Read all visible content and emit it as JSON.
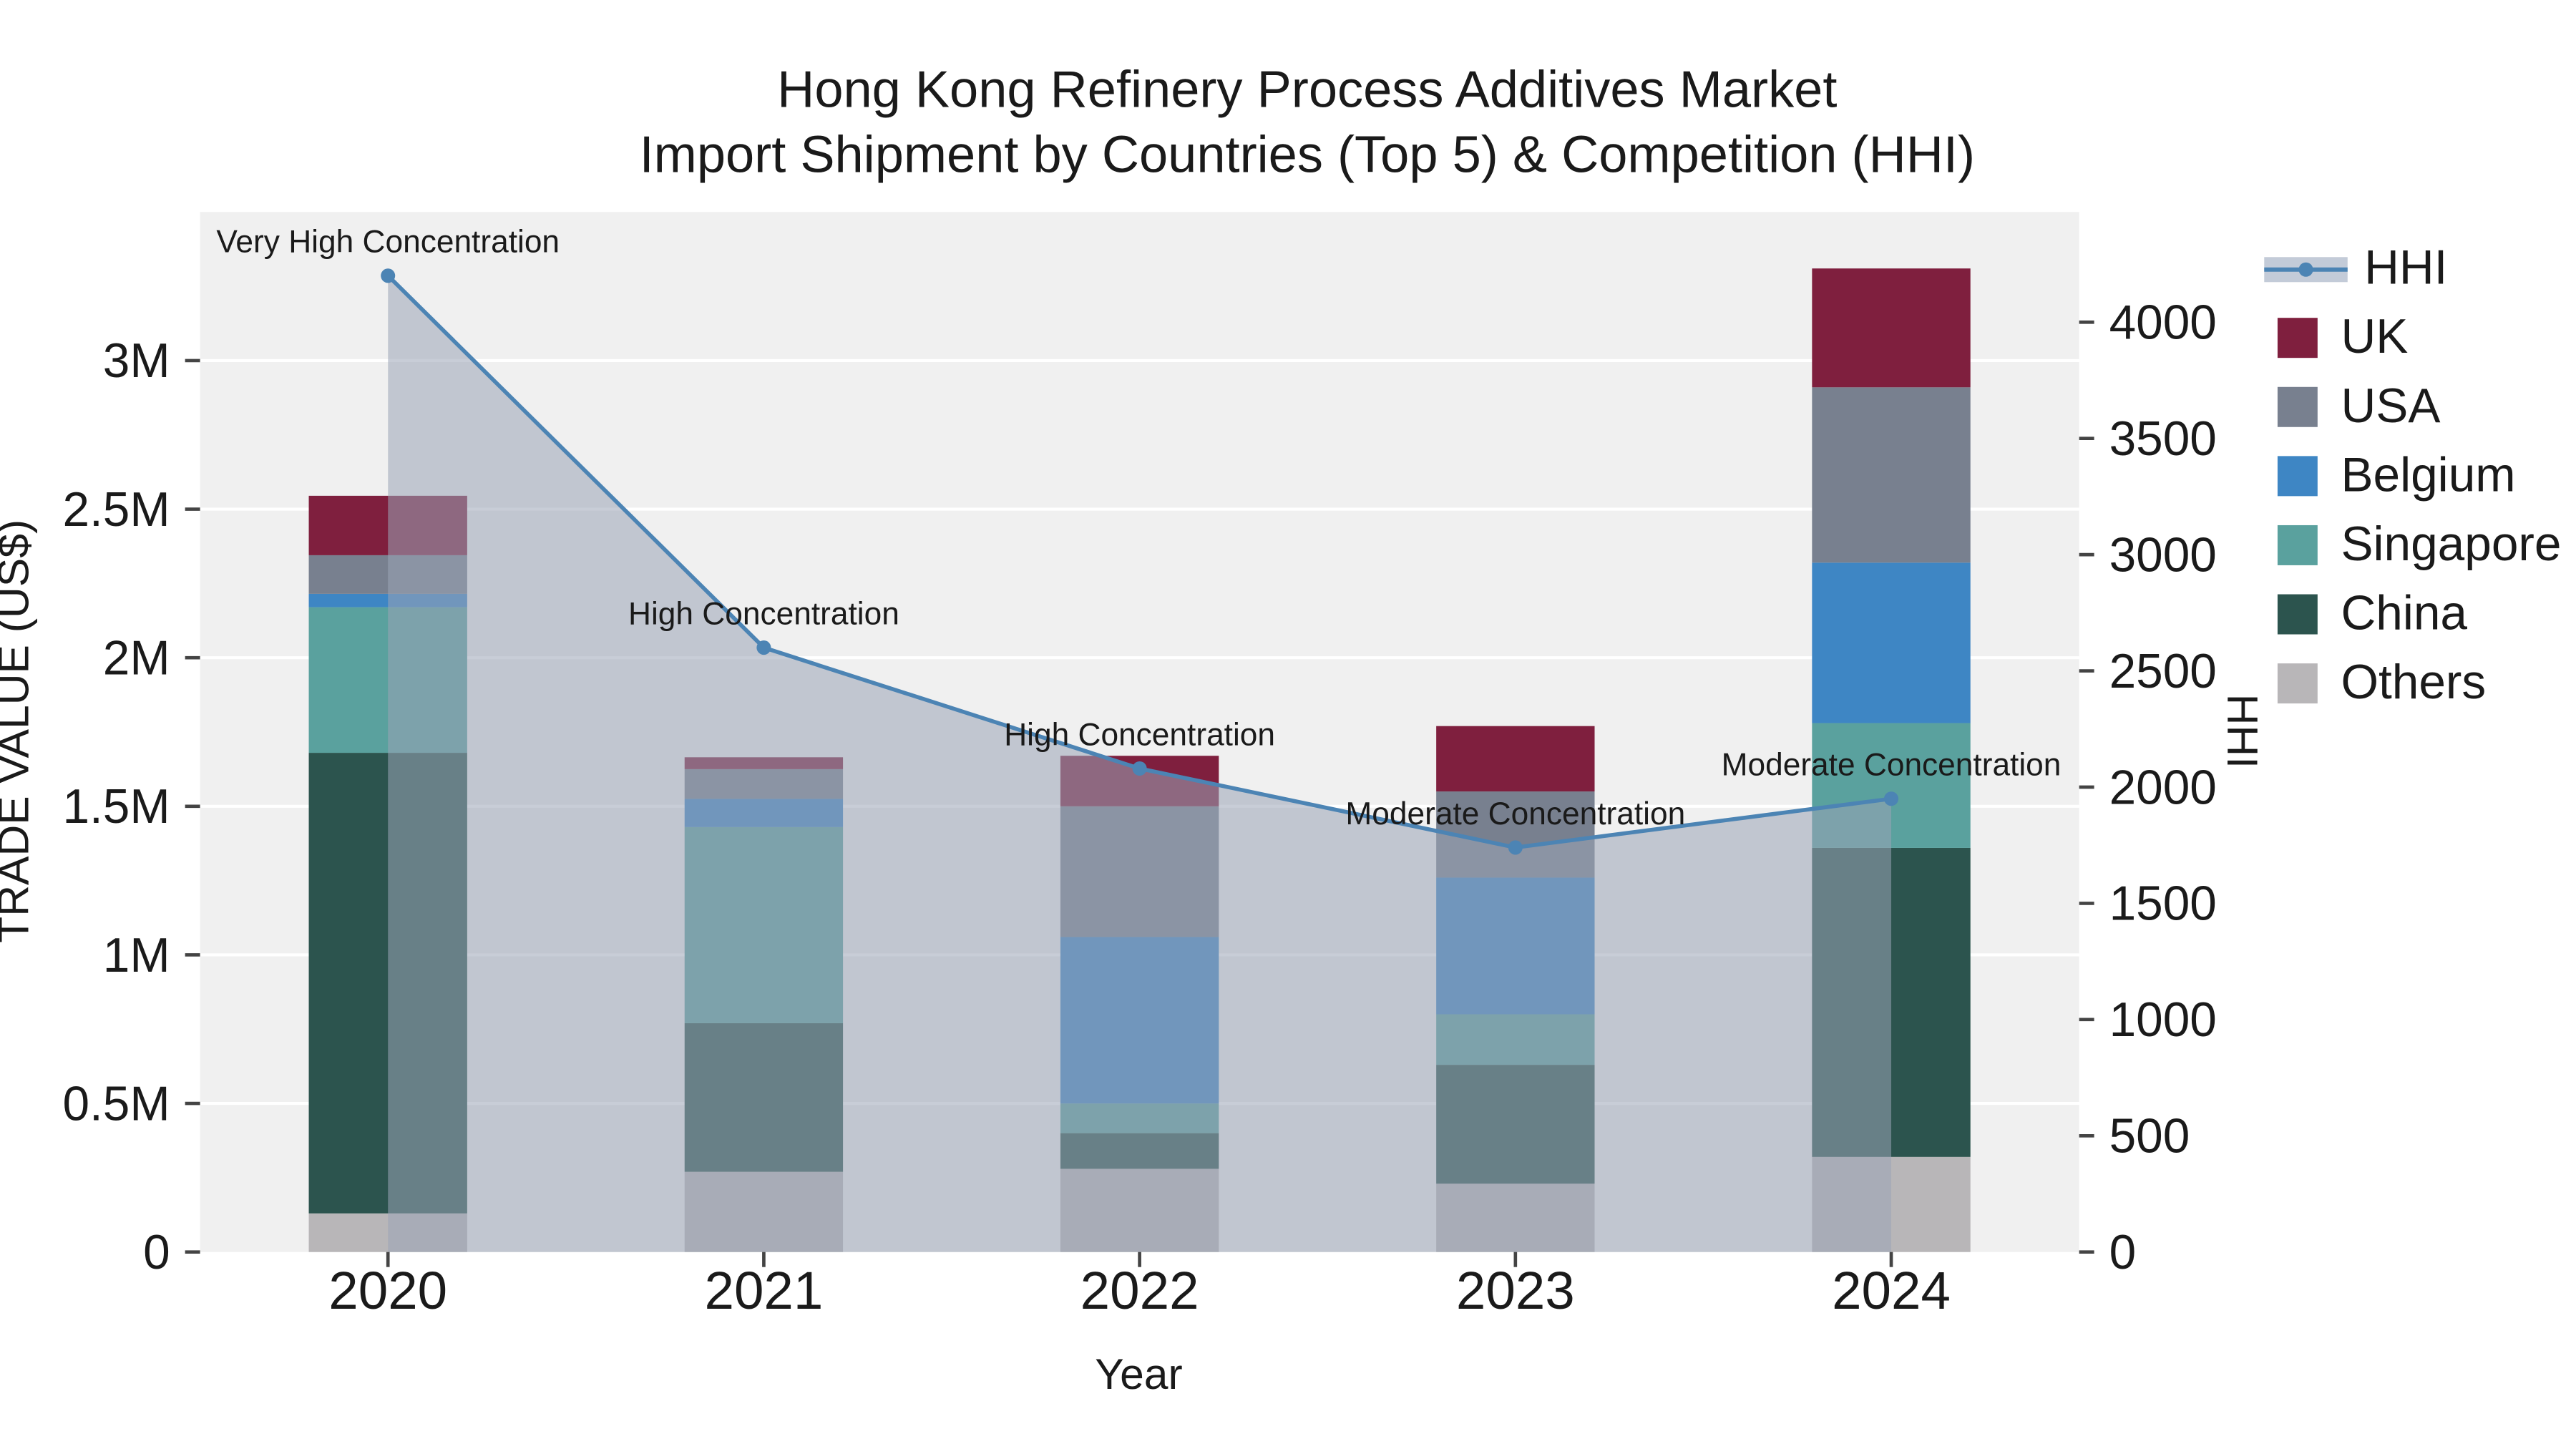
{
  "title": {
    "line1": "Hong Kong Refinery Process Additives Market",
    "line2": "Import Shipment by Countries (Top 5) & Competition (HHI)"
  },
  "axes": {
    "left": {
      "label": "TRADE VALUE (US$)",
      "range": [
        0,
        3500000
      ],
      "ticks": [
        {
          "v": 0,
          "label": "0"
        },
        {
          "v": 500000,
          "label": "0.5M"
        },
        {
          "v": 1000000,
          "label": "1M"
        },
        {
          "v": 1500000,
          "label": "1.5M"
        },
        {
          "v": 2000000,
          "label": "2M"
        },
        {
          "v": 2500000,
          "label": "2.5M"
        },
        {
          "v": 3000000,
          "label": "3M"
        }
      ]
    },
    "right": {
      "label": "HHI",
      "range": [
        0,
        4474
      ],
      "ticks": [
        {
          "v": 0,
          "label": "0"
        },
        {
          "v": 500,
          "label": "500"
        },
        {
          "v": 1000,
          "label": "1000"
        },
        {
          "v": 1500,
          "label": "1500"
        },
        {
          "v": 2000,
          "label": "2000"
        },
        {
          "v": 2500,
          "label": "2500"
        },
        {
          "v": 3000,
          "label": "3000"
        },
        {
          "v": 3500,
          "label": "3500"
        },
        {
          "v": 4000,
          "label": "4000"
        }
      ]
    },
    "x": {
      "label": "Year",
      "categories": [
        "2020",
        "2021",
        "2022",
        "2023",
        "2024"
      ]
    }
  },
  "legend": {
    "items": [
      {
        "label": "HHI",
        "type": "line",
        "color": "#4c84b4",
        "band": "#c3cbd8"
      },
      {
        "label": "UK",
        "type": "square",
        "color": "#7f1f3e"
      },
      {
        "label": "USA",
        "type": "square",
        "color": "#78808f"
      },
      {
        "label": "Belgium",
        "type": "square",
        "color": "#3e86c4"
      },
      {
        "label": "Singapore",
        "type": "square",
        "color": "#5aa19e"
      },
      {
        "label": "China",
        "type": "square",
        "color": "#2c544e"
      },
      {
        "label": "Others",
        "type": "square",
        "color": "#b8b6b8"
      }
    ]
  },
  "chart_data": {
    "type": "bar",
    "stacked": true,
    "title": "Hong Kong Refinery Process Additives Market — Import Shipment by Countries (Top 5) & Competition (HHI)",
    "xlabel": "Year",
    "ylabel_left": "TRADE VALUE (US$)",
    "ylabel_right": "HHI",
    "left_range": [
      0,
      3500000
    ],
    "right_range": [
      0,
      4474
    ],
    "categories": [
      "2020",
      "2021",
      "2022",
      "2023",
      "2024"
    ],
    "series": [
      {
        "name": "Others",
        "color": "#b8b6b8",
        "values": [
          130000,
          270000,
          280000,
          230000,
          320000
        ]
      },
      {
        "name": "China",
        "color": "#2c544e",
        "values": [
          1550000,
          500000,
          120000,
          400000,
          1040000
        ]
      },
      {
        "name": "Singapore",
        "color": "#5aa19e",
        "values": [
          490000,
          660000,
          100000,
          170000,
          420000
        ]
      },
      {
        "name": "Belgium",
        "color": "#3e86c4",
        "values": [
          45000,
          95000,
          560000,
          460000,
          540000
        ]
      },
      {
        "name": "USA",
        "color": "#78808f",
        "values": [
          130000,
          100000,
          440000,
          290000,
          590000
        ]
      },
      {
        "name": "UK",
        "color": "#7f1f3e",
        "values": [
          200000,
          40000,
          170000,
          220000,
          400000
        ]
      }
    ],
    "line": {
      "name": "HHI",
      "axis": "right",
      "color": "#4c84b4",
      "area_fill": "#9ba4b6",
      "area_opacity": 0.55,
      "values": [
        4200,
        2600,
        2080,
        1740,
        1950
      ]
    },
    "annotations": [
      {
        "category": "2020",
        "text": "Very High Concentration"
      },
      {
        "category": "2021",
        "text": "High Concentration"
      },
      {
        "category": "2022",
        "text": "High Concentration"
      },
      {
        "category": "2023",
        "text": "Moderate Concentration"
      },
      {
        "category": "2024",
        "text": "Moderate Concentration"
      }
    ]
  }
}
